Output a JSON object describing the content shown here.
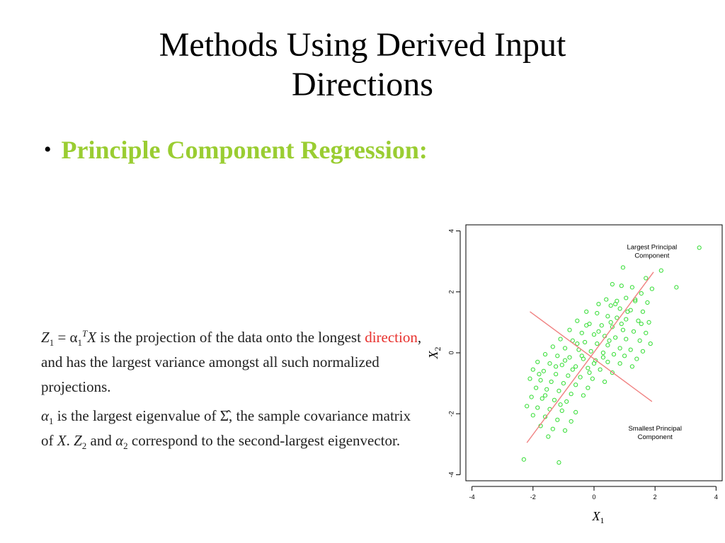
{
  "slide": {
    "title_line1": "Methods Using Derived Input",
    "title_line2": "Directions",
    "bullet": "Principle Component Regression:"
  },
  "text": {
    "p1_a": "Z",
    "p1_a_sub": "1",
    "p1_eq": " = α",
    "p1_alpha_sub": "1",
    "p1_alpha_sup": "T",
    "p1_x": "X",
    "p1_b": " is the projection of the data onto the longest ",
    "p1_link": "direction",
    "p1_c": ", and has the largest variance amongst all such normalized projections.",
    "p2_a": "α",
    "p2_a_sub": "1",
    "p2_b": " is the largest eigenvalue of ",
    "p2_sigma": "Σ̂",
    "p2_c": ", the sample covariance matrix of ",
    "p2_x": "X",
    "p2_d": ". ",
    "p2_z": "Z",
    "p2_z_sub": "2",
    "p2_e": " and ",
    "p2_alpha2": "α",
    "p2_alpha2_sub": "2",
    "p2_f": " correspond to the second-largest eigenvector."
  },
  "chart_data": {
    "type": "scatter",
    "title": "",
    "xlabel": "X",
    "xlabel_sub": "1",
    "ylabel": "X",
    "ylabel_sub": "2",
    "xlim": [
      -4.2,
      4.2
    ],
    "ylim": [
      -4.2,
      4.2
    ],
    "xticks": [
      "-4",
      "-2",
      "0",
      "2",
      "4"
    ],
    "yticks": [
      "-4",
      "-2",
      "0",
      "2",
      "4"
    ],
    "grid": false,
    "colors": {
      "points": "#33dd33",
      "lines": "#f08080",
      "frame": "#000000"
    },
    "annotations": [
      {
        "line1": "Largest Principal",
        "line2": "Component",
        "x": 1.9,
        "y": 3.4
      },
      {
        "line1": "Smallest Principal",
        "line2": "Component",
        "x": 2.0,
        "y": -2.55
      }
    ],
    "pc_lines": [
      {
        "name": "Largest Principal Component",
        "x1": -2.2,
        "y1": -2.95,
        "x2": 1.95,
        "y2": 2.65
      },
      {
        "name": "Smallest Principal Component",
        "x1": -2.1,
        "y1": 1.35,
        "x2": 1.9,
        "y2": -1.6
      }
    ],
    "points": [
      [
        3.45,
        3.45
      ],
      [
        0.95,
        2.8
      ],
      [
        2.2,
        2.7
      ],
      [
        1.7,
        2.45
      ],
      [
        2.7,
        2.15
      ],
      [
        0.6,
        2.25
      ],
      [
        0.9,
        2.2
      ],
      [
        1.25,
        2.15
      ],
      [
        1.9,
        2.1
      ],
      [
        1.55,
        1.95
      ],
      [
        0.4,
        1.75
      ],
      [
        0.75,
        1.7
      ],
      [
        1.05,
        1.8
      ],
      [
        1.35,
        1.7
      ],
      [
        1.75,
        1.65
      ],
      [
        0.15,
        1.6
      ],
      [
        0.55,
        1.55
      ],
      [
        0.85,
        1.45
      ],
      [
        1.2,
        1.4
      ],
      [
        1.6,
        1.35
      ],
      [
        -0.25,
        1.35
      ],
      [
        0.1,
        1.3
      ],
      [
        0.45,
        1.2
      ],
      [
        0.75,
        1.15
      ],
      [
        1.05,
        1.1
      ],
      [
        1.45,
        1.05
      ],
      [
        1.8,
        1.0
      ],
      [
        -0.55,
        1.05
      ],
      [
        -0.15,
        0.95
      ],
      [
        0.25,
        0.9
      ],
      [
        0.6,
        0.85
      ],
      [
        0.95,
        0.75
      ],
      [
        1.3,
        0.7
      ],
      [
        1.7,
        0.65
      ],
      [
        -0.8,
        0.75
      ],
      [
        -0.4,
        0.65
      ],
      [
        0.0,
        0.6
      ],
      [
        0.35,
        0.55
      ],
      [
        0.7,
        0.5
      ],
      [
        1.05,
        0.45
      ],
      [
        1.5,
        0.4
      ],
      [
        1.85,
        0.3
      ],
      [
        -1.1,
        0.45
      ],
      [
        -0.7,
        0.4
      ],
      [
        -0.3,
        0.35
      ],
      [
        0.1,
        0.3
      ],
      [
        0.45,
        0.25
      ],
      [
        0.85,
        0.15
      ],
      [
        1.2,
        0.1
      ],
      [
        1.6,
        0.05
      ],
      [
        -1.35,
        0.2
      ],
      [
        -0.95,
        0.15
      ],
      [
        -0.5,
        0.1
      ],
      [
        -0.1,
        0.05
      ],
      [
        0.3,
        0.0
      ],
      [
        0.65,
        -0.05
      ],
      [
        1.0,
        -0.1
      ],
      [
        1.4,
        -0.2
      ],
      [
        -1.6,
        -0.05
      ],
      [
        -1.2,
        -0.1
      ],
      [
        -0.8,
        -0.15
      ],
      [
        -0.35,
        -0.2
      ],
      [
        0.05,
        -0.25
      ],
      [
        0.45,
        -0.3
      ],
      [
        0.85,
        -0.35
      ],
      [
        1.25,
        -0.45
      ],
      [
        -1.85,
        -0.3
      ],
      [
        -1.45,
        -0.35
      ],
      [
        -1.05,
        -0.4
      ],
      [
        -0.6,
        -0.45
      ],
      [
        -0.2,
        -0.5
      ],
      [
        0.2,
        -0.55
      ],
      [
        0.6,
        -0.65
      ],
      [
        -2.0,
        -0.55
      ],
      [
        -1.65,
        -0.6
      ],
      [
        -1.25,
        -0.7
      ],
      [
        -0.85,
        -0.75
      ],
      [
        -0.45,
        -0.8
      ],
      [
        -0.05,
        -0.85
      ],
      [
        0.35,
        -0.95
      ],
      [
        -2.1,
        -0.85
      ],
      [
        -1.75,
        -0.9
      ],
      [
        -1.4,
        -0.95
      ],
      [
        -1.0,
        -1.0
      ],
      [
        -0.6,
        -1.05
      ],
      [
        -0.2,
        -1.15
      ],
      [
        -1.9,
        -1.15
      ],
      [
        -1.55,
        -1.2
      ],
      [
        -1.15,
        -1.25
      ],
      [
        -0.75,
        -1.35
      ],
      [
        -0.35,
        -1.4
      ],
      [
        -2.05,
        -1.45
      ],
      [
        -1.7,
        -1.5
      ],
      [
        -1.3,
        -1.55
      ],
      [
        -0.9,
        -1.6
      ],
      [
        -2.2,
        -1.75
      ],
      [
        -1.85,
        -1.8
      ],
      [
        -1.45,
        -1.85
      ],
      [
        -1.05,
        -1.9
      ],
      [
        -0.6,
        -1.95
      ],
      [
        -2.0,
        -2.05
      ],
      [
        -1.6,
        -2.1
      ],
      [
        -1.2,
        -2.2
      ],
      [
        -0.75,
        -2.25
      ],
      [
        -1.75,
        -2.4
      ],
      [
        -1.35,
        -2.5
      ],
      [
        -0.95,
        -2.55
      ],
      [
        -1.5,
        -2.75
      ],
      [
        -2.3,
        -3.5
      ],
      [
        -1.15,
        -3.6
      ],
      [
        -0.55,
        0.3
      ],
      [
        -0.15,
        -0.65
      ],
      [
        0.55,
        1.0
      ],
      [
        1.1,
        1.35
      ],
      [
        -1.25,
        -0.45
      ],
      [
        0.3,
        -0.15
      ],
      [
        -0.7,
        -0.55
      ],
      [
        0.15,
        0.7
      ],
      [
        -0.4,
        -0.1
      ],
      [
        0.9,
        0.95
      ],
      [
        -1.6,
        -1.4
      ],
      [
        -0.95,
        -0.25
      ],
      [
        0.7,
        1.6
      ],
      [
        1.55,
        0.95
      ],
      [
        -1.8,
        -0.7
      ],
      [
        0.0,
        -0.35
      ],
      [
        0.5,
        0.4
      ],
      [
        -0.25,
        0.9
      ],
      [
        -1.1,
        -1.7
      ],
      [
        1.35,
        1.75
      ]
    ]
  }
}
